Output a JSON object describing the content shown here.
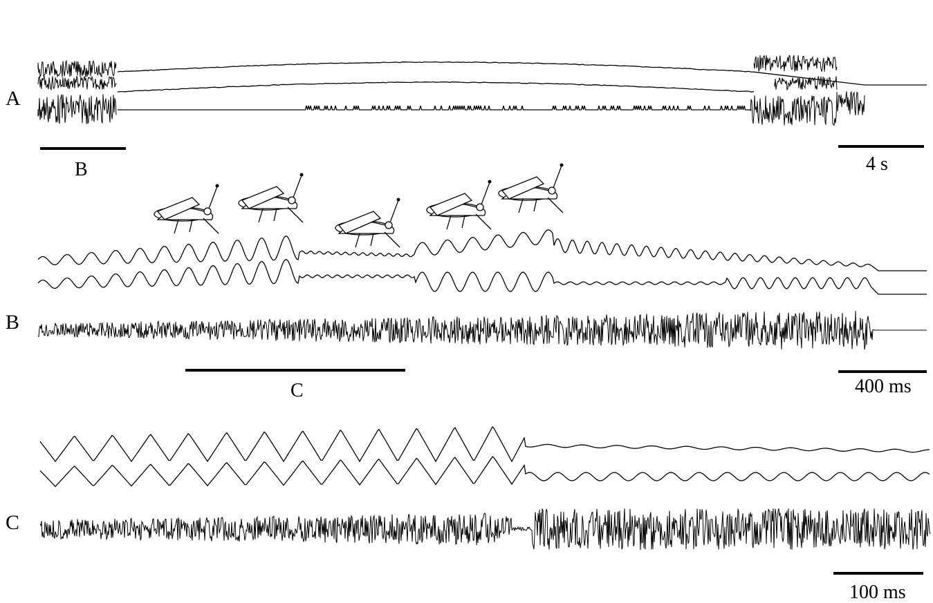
{
  "panels": [
    {
      "letter": "A",
      "scale_bar_label": "4 s",
      "zoom_bar_label": "B"
    },
    {
      "letter": "B",
      "scale_bar_label": "400 ms",
      "zoom_bar_label": "C"
    },
    {
      "letter": "C",
      "scale_bar_label": "100 ms"
    }
  ],
  "icons": [
    "grasshopper-icon",
    "grasshopper-icon",
    "grasshopper-icon",
    "grasshopper-icon",
    "grasshopper-icon"
  ],
  "colors": {
    "trace": "#000000",
    "background": "#ffffff"
  }
}
